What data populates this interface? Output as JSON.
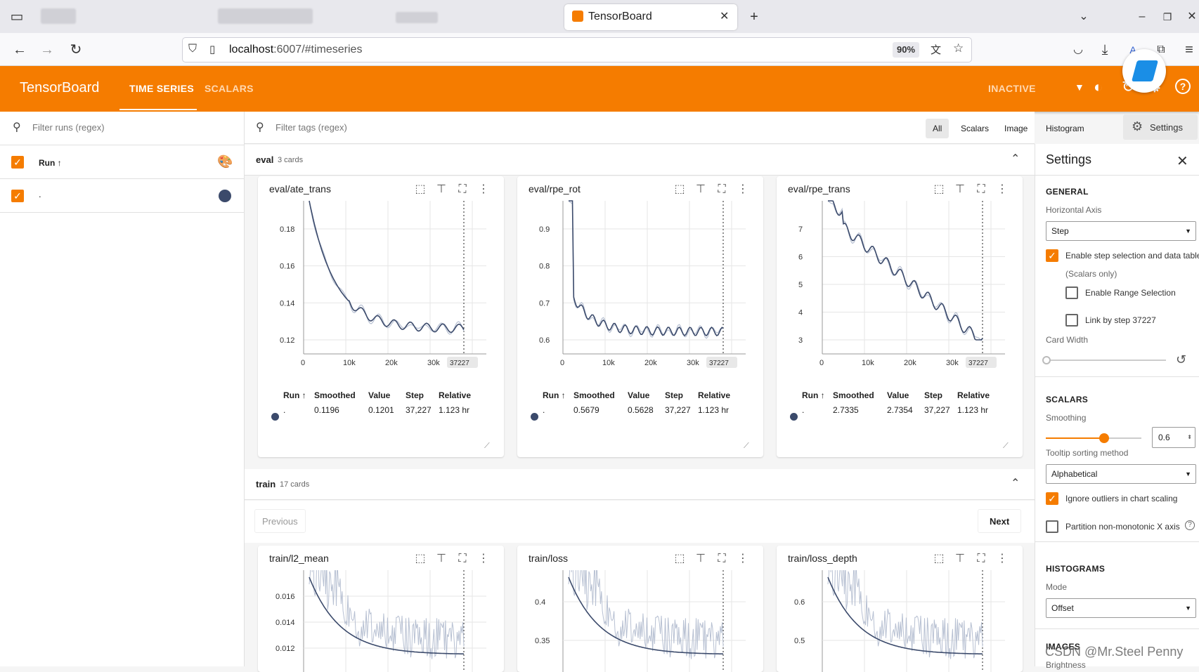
{
  "browser": {
    "tab_title": "TensorBoard",
    "url_host": "localhost",
    "url_rest": ":6007/#timeseries",
    "zoom": "90%"
  },
  "header": {
    "brand": "TensorBoard",
    "tabs": [
      "TIME SERIES",
      "SCALARS"
    ],
    "status": "INACTIVE"
  },
  "runs_panel": {
    "filter_placeholder": "Filter runs (regex)",
    "column_label": "Run ↑",
    "runs": [
      {
        "name": ".",
        "color": "#3b4a6b"
      }
    ]
  },
  "toolbar": {
    "filter_placeholder": "Filter tags (regex)",
    "type_filters": [
      "All",
      "Scalars",
      "Image",
      "Histogram"
    ],
    "settings_label": "Settings"
  },
  "groups": [
    {
      "name": "eval",
      "count": "3 cards"
    },
    {
      "name": "train",
      "count": "17 cards"
    }
  ],
  "pagination": {
    "previous": "Previous",
    "next": "Next"
  },
  "table_headers": [
    "Run ↑",
    "Smoothed",
    "Value",
    "Step",
    "Relative"
  ],
  "eval_cards": [
    {
      "title": "eval/ate_trans",
      "row": {
        "run": ".",
        "smoothed": "0.1196",
        "value": "0.1201",
        "step": "37,227",
        "relative": "1.123 hr"
      },
      "y_ticks": [
        "0.18",
        "0.16",
        "0.14",
        "0.12"
      ],
      "x_ticks": [
        "0",
        "10k",
        "20k",
        "30k"
      ],
      "step_label": "37227"
    },
    {
      "title": "eval/rpe_rot",
      "row": {
        "run": ".",
        "smoothed": "0.5679",
        "value": "0.5628",
        "step": "37,227",
        "relative": "1.123 hr"
      },
      "y_ticks": [
        "0.9",
        "0.8",
        "0.7",
        "0.6"
      ],
      "x_ticks": [
        "0",
        "10k",
        "20k",
        "30k"
      ],
      "step_label": "37227"
    },
    {
      "title": "eval/rpe_trans",
      "row": {
        "run": ".",
        "smoothed": "2.7335",
        "value": "2.7354",
        "step": "37,227",
        "relative": "1.123 hr"
      },
      "y_ticks": [
        "7",
        "6",
        "5",
        "4",
        "3"
      ],
      "x_ticks": [
        "0",
        "10k",
        "20k",
        "30k"
      ],
      "step_label": "37227"
    }
  ],
  "train_cards": [
    {
      "title": "train/l2_mean",
      "y_ticks": [
        "0.016",
        "0.014",
        "0.012"
      ]
    },
    {
      "title": "train/loss",
      "y_ticks": [
        "0.4",
        "0.35"
      ]
    },
    {
      "title": "train/loss_depth",
      "y_ticks": [
        "0.6",
        "0.5"
      ]
    }
  ],
  "settings": {
    "title": "Settings",
    "general": "GENERAL",
    "horizontal_axis_label": "Horizontal Axis",
    "horizontal_axis_value": "Step",
    "enable_step_selection": "Enable step selection and data table",
    "scalars_only": "(Scalars only)",
    "enable_range_selection": "Enable Range Selection",
    "link_by_step": "Link by step 37227",
    "card_width": "Card Width",
    "scalars": "SCALARS",
    "smoothing_label": "Smoothing",
    "smoothing_value": "0.6",
    "tooltip_sort_label": "Tooltip sorting method",
    "tooltip_sort_value": "Alphabetical",
    "ignore_outliers": "Ignore outliers in chart scaling",
    "partition_non_monotonic": "Partition non-monotonic X axis",
    "histograms": "HISTOGRAMS",
    "mode_label": "Mode",
    "mode_value": "Offset",
    "images": "IMAGES",
    "brightness": "Brightness"
  },
  "watermark": "CSDN @Mr.Steel Penny",
  "colors": {
    "accent": "#f57c00",
    "run": "#3b4a6b"
  }
}
